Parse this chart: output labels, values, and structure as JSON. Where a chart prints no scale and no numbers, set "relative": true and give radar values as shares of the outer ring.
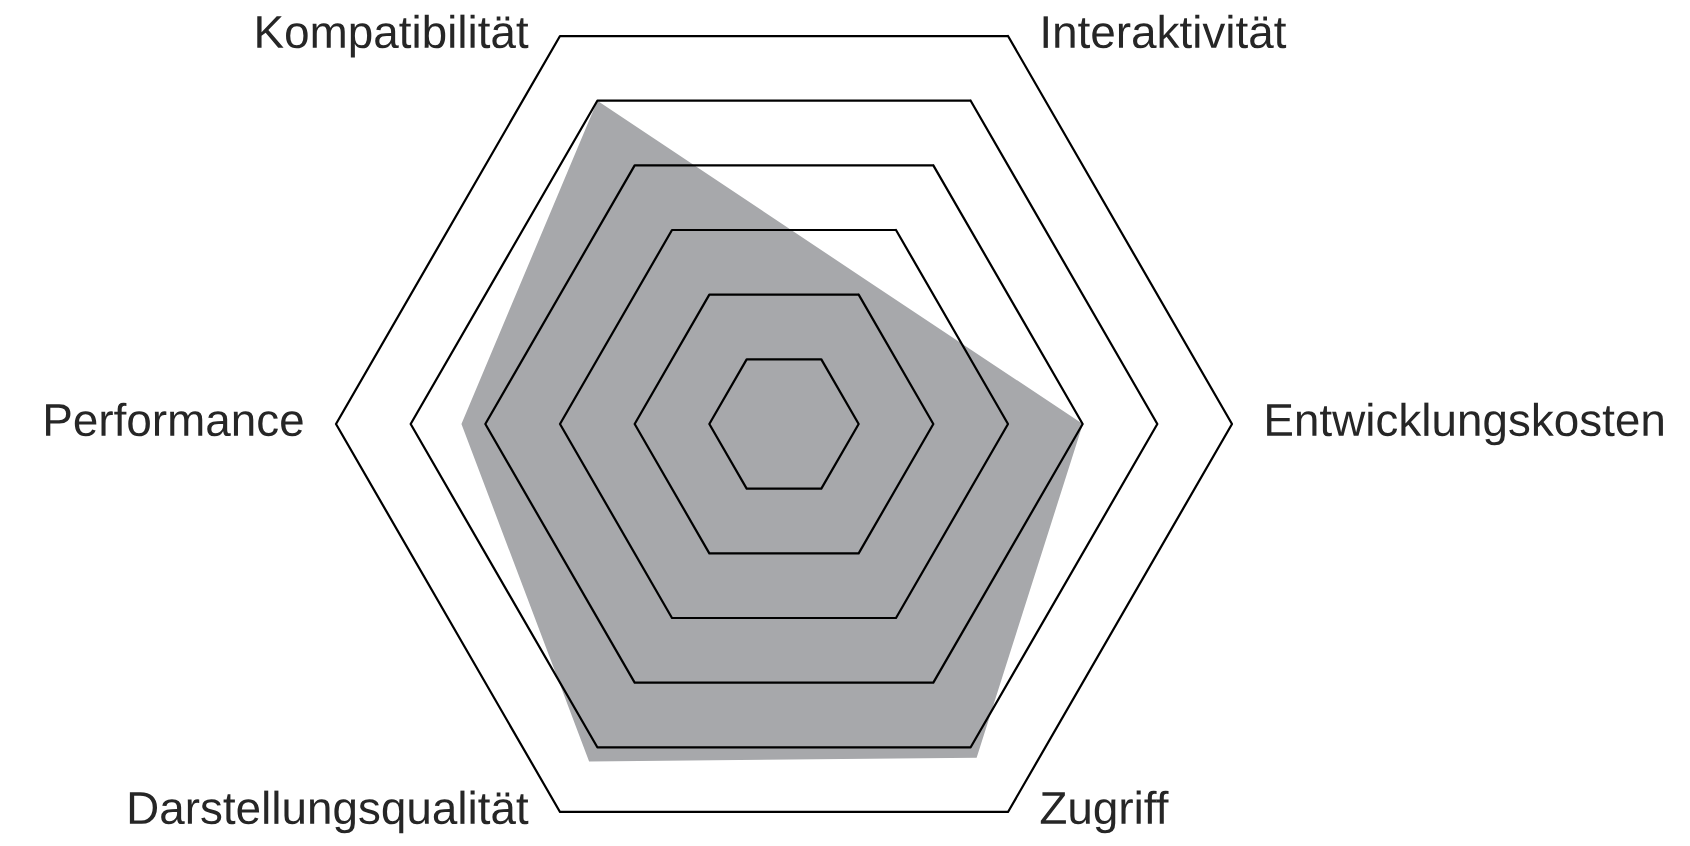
{
  "chart_data": {
    "type": "radar",
    "relative": true,
    "categories": [
      "Interaktivität",
      "Entwicklungskosten",
      "Zugriff",
      "Darstellungsqualität",
      "Performance",
      "Kompatibilität"
    ],
    "series": [
      {
        "color": "#a7a8ab",
        "values": [
          0.37,
          0.667,
          0.86,
          0.87,
          0.72,
          0.833
        ]
      }
    ]
  }
}
